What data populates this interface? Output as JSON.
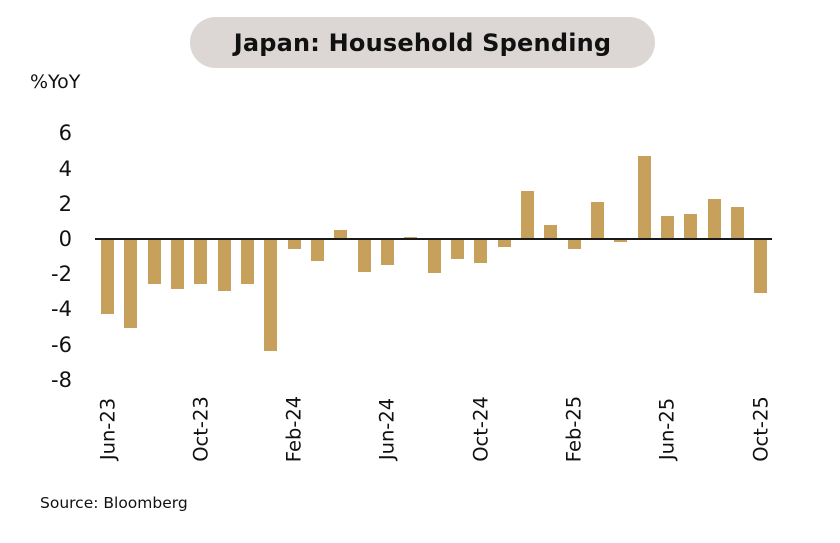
{
  "title": "Japan: Household Spending",
  "y_axis_unit": "%YoY",
  "source": "Source: Bloomberg",
  "colors": {
    "bar": "#C7A05B",
    "title_pill_bg": "#DCD6D4",
    "axis_line": "#1A1A1A",
    "text": "#111111",
    "background": "#FFFFFF"
  },
  "chart_data": {
    "type": "bar",
    "title": "Japan: Household Spending",
    "ylabel": "%YoY",
    "x": [
      "Jun-23",
      "Jul-23",
      "Aug-23",
      "Sep-23",
      "Oct-23",
      "Nov-23",
      "Dec-23",
      "Jan-24",
      "Feb-24",
      "Mar-24",
      "Apr-24",
      "May-24",
      "Jun-24",
      "Jul-24",
      "Aug-24",
      "Sep-24",
      "Oct-24",
      "Nov-24",
      "Dec-24",
      "Jan-25",
      "Feb-25",
      "Mar-25",
      "Apr-25",
      "May-25",
      "Jun-25",
      "Jul-25",
      "Aug-25",
      "Sep-25",
      "Oct-25"
    ],
    "values": [
      -4.2,
      -5.0,
      -2.5,
      -2.8,
      -2.5,
      -2.9,
      -2.5,
      -6.3,
      -0.5,
      -1.2,
      0.5,
      -1.8,
      -1.4,
      0.1,
      -1.9,
      -1.1,
      -1.3,
      -0.4,
      2.7,
      0.8,
      -0.5,
      2.1,
      -0.1,
      4.7,
      1.3,
      1.4,
      2.3,
      1.8,
      -3.0
    ],
    "y_ticks": [
      6,
      4,
      2,
      0,
      -2,
      -4,
      -6,
      -8
    ],
    "ylim": [
      -8,
      6
    ],
    "x_tick_every": 4,
    "x_tick_labels": [
      "Jun-23",
      "Oct-23",
      "Feb-24",
      "Jun-24",
      "Oct-24",
      "Feb-25",
      "Jun-25",
      "Oct-25"
    ],
    "grid": false,
    "legend": null,
    "source": "Source: Bloomberg"
  }
}
